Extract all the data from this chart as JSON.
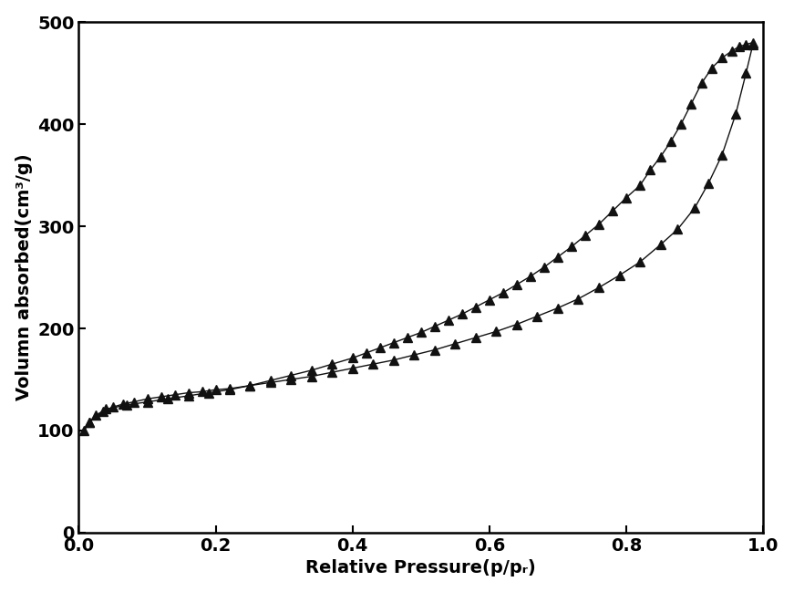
{
  "xlabel": "Relative Pressure(p/pᵣ)",
  "ylabel": "Volumn absorbed(cm³/g)",
  "xlim": [
    0.0,
    1.0
  ],
  "ylim": [
    0,
    500
  ],
  "xticks": [
    0.0,
    0.2,
    0.4,
    0.6,
    0.8,
    1.0
  ],
  "yticks": [
    0,
    100,
    200,
    300,
    400,
    500
  ],
  "line_color": "#111111",
  "marker_color": "#111111",
  "marker": "^",
  "marker_size": 7,
  "adsorption_x": [
    0.008,
    0.015,
    0.025,
    0.035,
    0.05,
    0.065,
    0.08,
    0.1,
    0.12,
    0.14,
    0.16,
    0.18,
    0.2,
    0.22,
    0.25,
    0.28,
    0.31,
    0.34,
    0.37,
    0.4,
    0.43,
    0.46,
    0.49,
    0.52,
    0.55,
    0.58,
    0.61,
    0.64,
    0.67,
    0.7,
    0.73,
    0.76,
    0.79,
    0.82,
    0.85,
    0.875,
    0.9,
    0.92,
    0.94,
    0.96,
    0.975,
    0.985
  ],
  "adsorption_y": [
    100,
    108,
    115,
    119,
    123,
    126,
    128,
    131,
    133,
    135,
    137,
    138,
    140,
    141,
    144,
    147,
    150,
    153,
    157,
    161,
    165,
    169,
    174,
    179,
    185,
    191,
    197,
    204,
    212,
    220,
    229,
    240,
    252,
    265,
    282,
    297,
    318,
    342,
    370,
    410,
    450,
    478
  ],
  "desorption_x": [
    0.985,
    0.975,
    0.965,
    0.955,
    0.94,
    0.925,
    0.91,
    0.895,
    0.88,
    0.865,
    0.85,
    0.835,
    0.82,
    0.8,
    0.78,
    0.76,
    0.74,
    0.72,
    0.7,
    0.68,
    0.66,
    0.64,
    0.62,
    0.6,
    0.58,
    0.56,
    0.54,
    0.52,
    0.5,
    0.48,
    0.46,
    0.44,
    0.42,
    0.4,
    0.37,
    0.34,
    0.31,
    0.28,
    0.25,
    0.22,
    0.19,
    0.16,
    0.13,
    0.1,
    0.07,
    0.04,
    0.015
  ],
  "desorption_y": [
    480,
    478,
    476,
    472,
    465,
    455,
    440,
    420,
    400,
    383,
    368,
    355,
    340,
    328,
    315,
    302,
    291,
    280,
    270,
    260,
    251,
    243,
    235,
    228,
    221,
    214,
    208,
    202,
    196,
    191,
    186,
    181,
    176,
    171,
    165,
    159,
    154,
    149,
    144,
    140,
    137,
    134,
    131,
    128,
    125,
    121,
    108
  ]
}
